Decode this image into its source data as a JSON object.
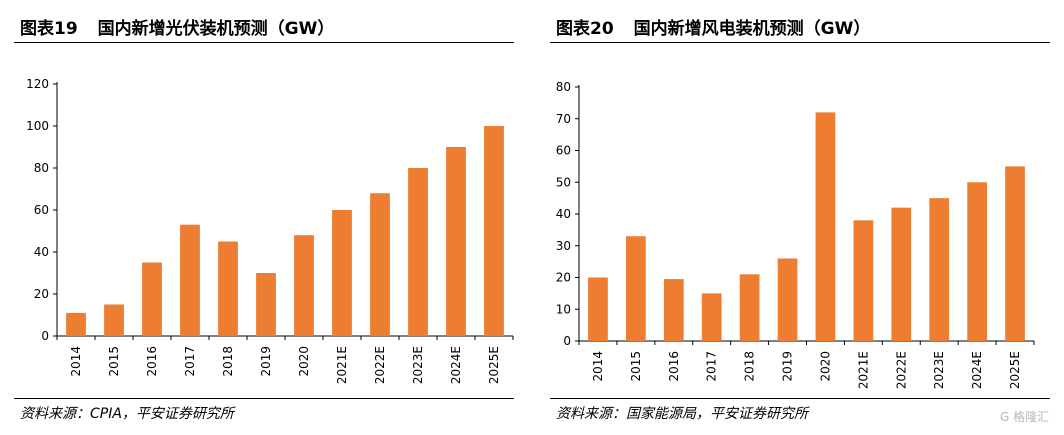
{
  "panels": [
    {
      "figure_label": "图表19",
      "title": "国内新增光伏装机预测（GW）",
      "source": "资料来源：CPIA，平安证券研究所"
    },
    {
      "figure_label": "图表20",
      "title": "国内新增风电装机预测（GW）",
      "source": "资料来源：国家能源局，平安证券研究所"
    }
  ],
  "watermark": "G 格隆汇",
  "chart_data": [
    {
      "type": "bar",
      "title": "国内新增光伏装机预测（GW）",
      "categories": [
        "2014",
        "2015",
        "2016",
        "2017",
        "2018",
        "2019",
        "2020",
        "2021E",
        "2022E",
        "2023E",
        "2024E",
        "2025E"
      ],
      "values": [
        11,
        15,
        35,
        53,
        45,
        30,
        48,
        60,
        68,
        80,
        90,
        100
      ],
      "ylim": [
        0,
        120
      ],
      "yticks": [
        0,
        20,
        40,
        60,
        80,
        100,
        120
      ],
      "xlabel": "",
      "ylabel": "",
      "grid": false,
      "bar_color": "#ed7d31"
    },
    {
      "type": "bar",
      "title": "国内新增风电装机预测（GW）",
      "categories": [
        "2014",
        "2015",
        "2016",
        "2017",
        "2018",
        "2019",
        "2020",
        "2021E",
        "2022E",
        "2023E",
        "2024E",
        "2025E"
      ],
      "values": [
        20,
        33,
        19.5,
        15,
        21,
        26,
        72,
        38,
        42,
        45,
        50,
        55
      ],
      "ylim": [
        0,
        80
      ],
      "yticks": [
        0,
        10,
        20,
        30,
        40,
        50,
        60,
        70,
        80
      ],
      "xlabel": "",
      "ylabel": "",
      "grid": false,
      "bar_color": "#ed7d31"
    }
  ]
}
